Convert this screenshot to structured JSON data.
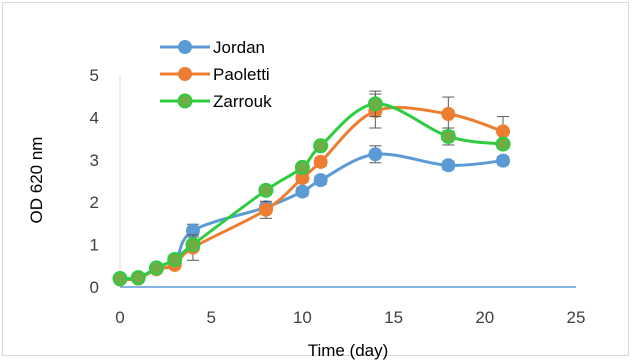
{
  "chart_data": {
    "type": "line",
    "title": "",
    "xlabel": "Time (day)",
    "ylabel": "OD 620 nm",
    "xlim": [
      0,
      25
    ],
    "ylim": [
      0,
      5
    ],
    "xticks": [
      0,
      5,
      10,
      15,
      20,
      25
    ],
    "yticks": [
      0,
      1,
      2,
      3,
      4,
      5
    ],
    "grid": false,
    "legend_position": "top-left",
    "smooth": true,
    "series": [
      {
        "name": "Jordan",
        "color": "#5b9bd5",
        "x": [
          0,
          1,
          2,
          3,
          4,
          8,
          10,
          11,
          14,
          18,
          21
        ],
        "y": [
          0.18,
          0.2,
          0.42,
          0.55,
          1.33,
          1.88,
          2.25,
          2.52,
          3.13,
          2.87,
          2.98
        ],
        "err": [
          0.05,
          0.05,
          0.05,
          0.05,
          0.15,
          0.1,
          0.1,
          0.1,
          0.2,
          0.1,
          0.1
        ]
      },
      {
        "name": "Paoletti",
        "color": "#ed7d31",
        "x": [
          0,
          1,
          2,
          3,
          4,
          8,
          10,
          11,
          14,
          18,
          21
        ],
        "y": [
          0.18,
          0.2,
          0.42,
          0.52,
          0.93,
          1.82,
          2.57,
          2.95,
          4.15,
          4.08,
          3.67
        ],
        "err": [
          0.05,
          0.05,
          0.05,
          0.05,
          0.3,
          0.2,
          0.1,
          0.1,
          0.4,
          0.4,
          0.35
        ]
      },
      {
        "name": "Zarrouk",
        "color": "#2ecc40",
        "x": [
          0,
          1,
          2,
          3,
          4,
          8,
          10,
          11,
          14,
          18,
          21
        ],
        "y": [
          0.2,
          0.22,
          0.45,
          0.65,
          1.0,
          2.28,
          2.82,
          3.33,
          4.32,
          3.55,
          3.37
        ],
        "err": [
          0.05,
          0.05,
          0.05,
          0.05,
          0.1,
          0.1,
          0.1,
          0.1,
          0.3,
          0.2,
          0.1
        ]
      }
    ]
  }
}
